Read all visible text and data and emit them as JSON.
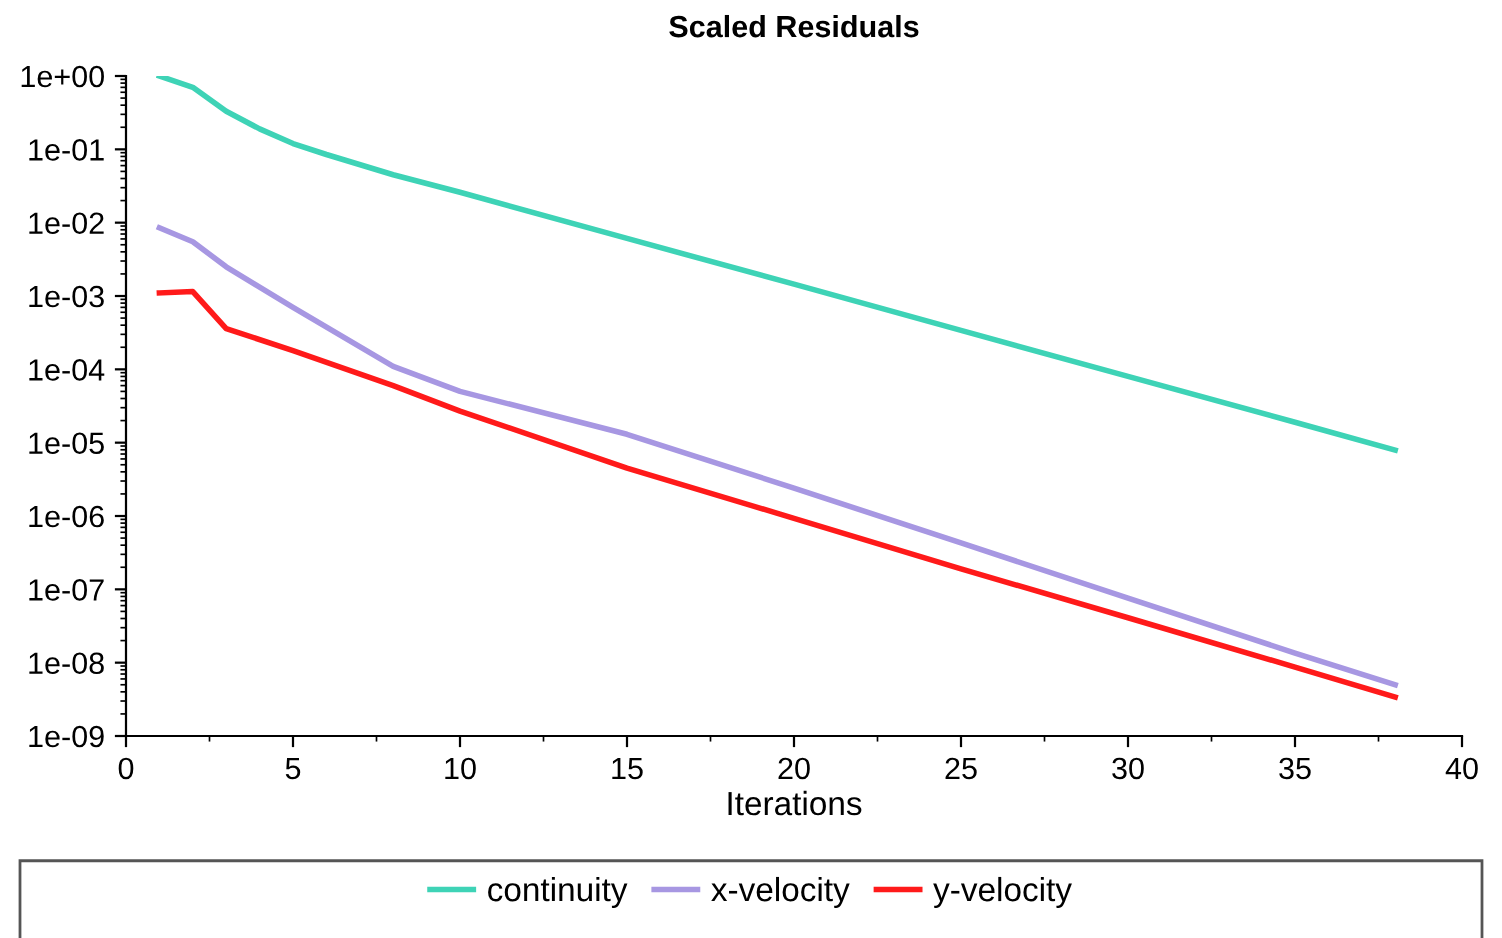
{
  "chart_data": {
    "type": "line",
    "title": "Scaled Residuals",
    "xlabel": "Iterations",
    "log": "y",
    "xlim": [
      0,
      40
    ],
    "xticks": [
      0,
      5,
      10,
      15,
      20,
      25,
      30,
      35,
      40
    ],
    "ylim": [
      1e-09,
      1
    ],
    "yticks": [
      {
        "value": 1,
        "label": "1e+00"
      },
      {
        "value": 0.1,
        "label": "1e-01"
      },
      {
        "value": 0.01,
        "label": "1e-02"
      },
      {
        "value": 0.001,
        "label": "1e-03"
      },
      {
        "value": 0.0001,
        "label": "1e-04"
      },
      {
        "value": 1e-05,
        "label": "1e-05"
      },
      {
        "value": 1e-06,
        "label": "1e-06"
      },
      {
        "value": 1e-07,
        "label": "1e-07"
      },
      {
        "value": 1e-08,
        "label": "1e-08"
      },
      {
        "value": 1e-09,
        "label": "1e-09"
      }
    ],
    "grid": false,
    "legend": "bottom",
    "marker": "none",
    "line_style": "solid",
    "series": [
      {
        "name": "continuity",
        "color": "#3ed3b6",
        "x": [
          1,
          2,
          3,
          4,
          5,
          6,
          8,
          10,
          15,
          20,
          25,
          30,
          35,
          38
        ],
        "values": [
          1.0,
          0.7,
          0.33,
          0.19,
          0.12,
          0.085,
          0.045,
          0.026,
          0.0061,
          0.00145,
          0.00034,
          8e-05,
          1.9e-05,
          7.9e-06
        ]
      },
      {
        "name": "x-velocity",
        "color": "#a797e2",
        "x": [
          1,
          2,
          3,
          5,
          8,
          10,
          15,
          20,
          25,
          30,
          35,
          38
        ],
        "values": [
          0.0085,
          0.0055,
          0.0025,
          0.0007,
          0.00011,
          5e-05,
          1.3e-05,
          2.4e-06,
          4.3e-07,
          7.6e-08,
          1.35e-08,
          5e-09
        ]
      },
      {
        "name": "y-velocity",
        "color": "#ff1a1a",
        "x": [
          1,
          2,
          3,
          5,
          8,
          10,
          15,
          20,
          25,
          30,
          35,
          38
        ],
        "values": [
          0.0011,
          0.00115,
          0.00036,
          0.00018,
          6e-05,
          2.7e-05,
          4.5e-06,
          9.3e-07,
          1.9e-07,
          4.1e-08,
          8.7e-09,
          3.4e-09
        ]
      }
    ]
  }
}
